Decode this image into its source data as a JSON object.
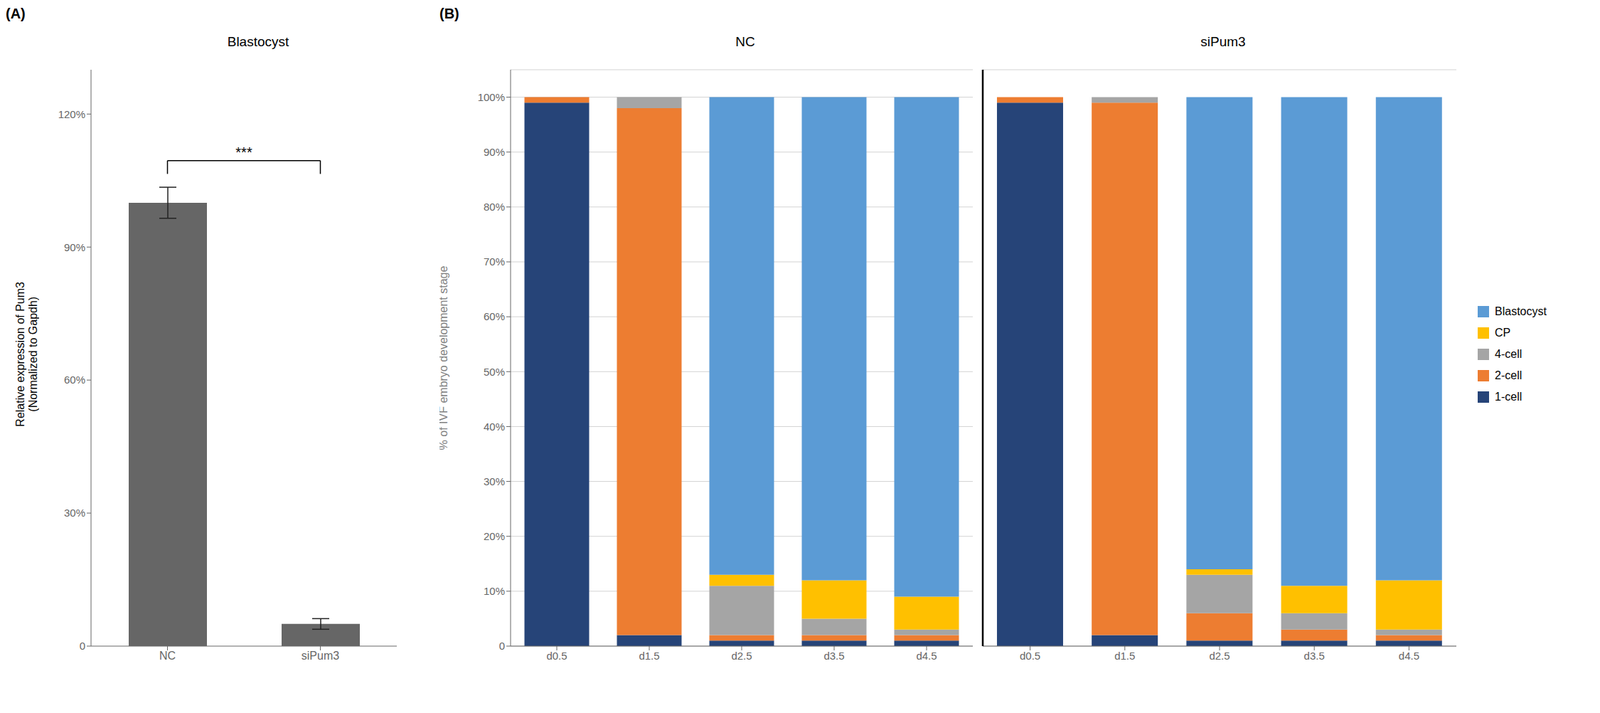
{
  "chart_data": [
    {
      "type": "bar",
      "title": "Blastocyst",
      "ylabel": "Relative expression of Pum3\n(Normalized to Gapdh)",
      "categories": [
        "NC",
        "siPum3"
      ],
      "values": [
        100.0,
        5.0
      ],
      "errors": [
        3.5,
        1.2
      ],
      "color": "#666666",
      "ylim": [
        0,
        130
      ],
      "yticks": [
        0,
        {
          "value": 30,
          "label": "30%"
        },
        {
          "value": 60,
          "label": "60%"
        },
        {
          "value": 90,
          "label": "90%"
        },
        {
          "value": 120,
          "label": "120%"
        }
      ],
      "grid": false,
      "annotations": [
        {
          "text": "(A)"
        },
        {
          "text": "***",
          "between": [
            "NC",
            "siPum3"
          ]
        }
      ]
    },
    {
      "type": "bar",
      "stacked": true,
      "ylabel": "% of IVF embryo development stage",
      "groups": [
        {
          "title": "NC",
          "categories": [
            "d0.5",
            "d1.5",
            "d2.5",
            "d3.5",
            "d4.5"
          ]
        },
        {
          "title": "siPum3",
          "categories": [
            "d0.5",
            "d1.5",
            "d2.5",
            "d3.5",
            "d4.5"
          ]
        }
      ],
      "series": [
        {
          "name": "1-cell",
          "color": "#264478",
          "values": [
            99,
            2,
            1,
            1,
            1,
            99,
            2,
            1,
            1,
            1
          ]
        },
        {
          "name": "2-cell",
          "color": "#ED7D31",
          "values": [
            1,
            96,
            1,
            1,
            1,
            1,
            97,
            5,
            2,
            1
          ]
        },
        {
          "name": "4-cell",
          "color": "#A5A5A5",
          "values": [
            0,
            2,
            9,
            3,
            1,
            0,
            1,
            7,
            3,
            1
          ]
        },
        {
          "name": "CP",
          "color": "#FFC000",
          "values": [
            0,
            0,
            2,
            7,
            6,
            0,
            0,
            1,
            5,
            9
          ]
        },
        {
          "name": "Blastocyst",
          "color": "#5B9BD5",
          "values": [
            0,
            0,
            87,
            88,
            91,
            0,
            0,
            86,
            89,
            88
          ]
        }
      ],
      "ylim": [
        0,
        105
      ],
      "yticks": [
        0,
        {
          "value": 10,
          "label": "10%"
        },
        {
          "value": 20,
          "label": "20%"
        },
        {
          "value": 30,
          "label": "30%"
        },
        {
          "value": 40,
          "label": "40%"
        },
        {
          "value": 50,
          "label": "50%"
        },
        {
          "value": 60,
          "label": "60%"
        },
        {
          "value": 70,
          "label": "70%"
        },
        {
          "value": 80,
          "label": "80%"
        },
        {
          "value": 90,
          "label": "90%"
        },
        {
          "value": 100,
          "label": "100%"
        }
      ],
      "grid": true,
      "legend": "right",
      "annotations": [
        {
          "text": "(B)"
        }
      ]
    }
  ]
}
